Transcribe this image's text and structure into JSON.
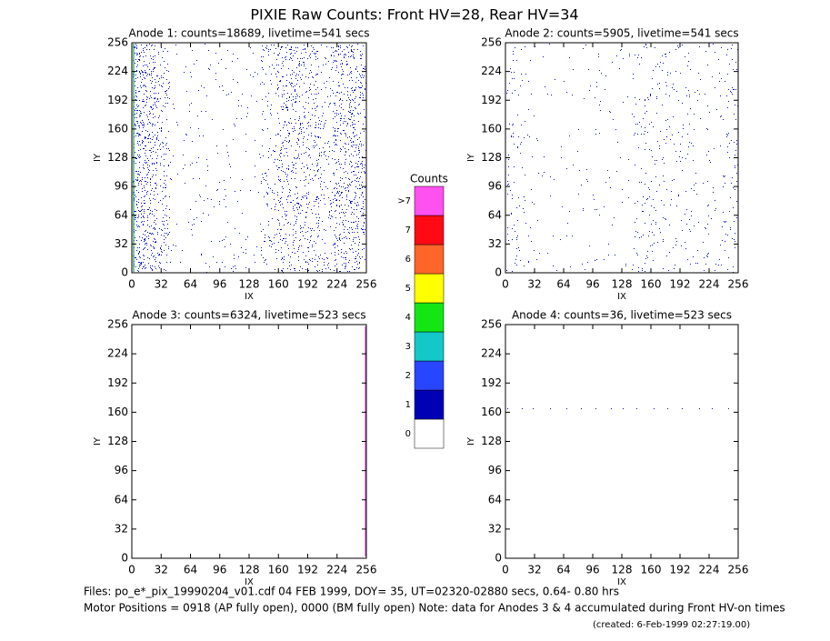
{
  "title": "PIXIE Raw Counts:  Front HV=28, Rear HV=34",
  "chart_data": [
    {
      "type": "image",
      "title": "Anode 1: counts=18689, livetime=541 secs",
      "xlabel": "IX",
      "ylabel": "IY",
      "xlim": [
        0,
        256
      ],
      "ylim": [
        0,
        256
      ],
      "xticks": [
        0,
        32,
        64,
        96,
        128,
        160,
        192,
        224,
        256
      ],
      "yticks": [
        0,
        32,
        64,
        96,
        128,
        160,
        192,
        224,
        256
      ]
    },
    {
      "type": "image",
      "title": "Anode 2: counts=5905, livetime=541 secs",
      "xlabel": "IX",
      "ylabel": "IY",
      "xlim": [
        0,
        256
      ],
      "ylim": [
        0,
        256
      ],
      "xticks": [
        0,
        32,
        64,
        96,
        128,
        160,
        192,
        224,
        256
      ],
      "yticks": [
        0,
        32,
        64,
        96,
        128,
        160,
        192,
        224,
        256
      ]
    },
    {
      "type": "image",
      "title": "Anode 3: counts=6324, livetime=523 secs",
      "xlabel": "IX",
      "ylabel": "IY",
      "xlim": [
        0,
        256
      ],
      "ylim": [
        0,
        256
      ],
      "xticks": [
        0,
        32,
        64,
        96,
        128,
        160,
        192,
        224,
        256
      ],
      "yticks": [
        0,
        32,
        64,
        96,
        128,
        160,
        192,
        224,
        256
      ]
    },
    {
      "type": "image",
      "title": "Anode 4: counts=36, livetime=523 secs",
      "xlabel": "IX",
      "ylabel": "IY",
      "xlim": [
        0,
        256
      ],
      "ylim": [
        0,
        256
      ],
      "xticks": [
        0,
        32,
        64,
        96,
        128,
        160,
        192,
        224,
        256
      ],
      "yticks": [
        0,
        32,
        64,
        96,
        128,
        160,
        192,
        224,
        256
      ]
    }
  ],
  "colorbar": {
    "title": "Counts",
    "levels": [
      {
        "label": "0",
        "color": "#ffffff"
      },
      {
        "label": "1",
        "color": "#0000b4"
      },
      {
        "label": "2",
        "color": "#2846ff"
      },
      {
        "label": "3",
        "color": "#14c8c8"
      },
      {
        "label": "4",
        "color": "#14e614"
      },
      {
        "label": "5",
        "color": "#ffff00"
      },
      {
        "label": "6",
        "color": "#ff6428"
      },
      {
        "label": "7",
        "color": "#ff0a14"
      },
      {
        "label": ">7",
        "color": "#ff50f0"
      }
    ]
  },
  "footer": {
    "line1": "Files: po_e*_pix_19990204_v01.cdf    04 FEB 1999, DOY= 35, UT=02320-02880 secs,  0.64- 0.80 hrs",
    "line2": "Motor Positions = 0918 (AP fully open), 0000 (BM fully open)    Note: data for Anodes 3 & 4 accumulated during Front HV-on times",
    "created": "(created:  6-Feb-1999 02:27:19.00)"
  }
}
